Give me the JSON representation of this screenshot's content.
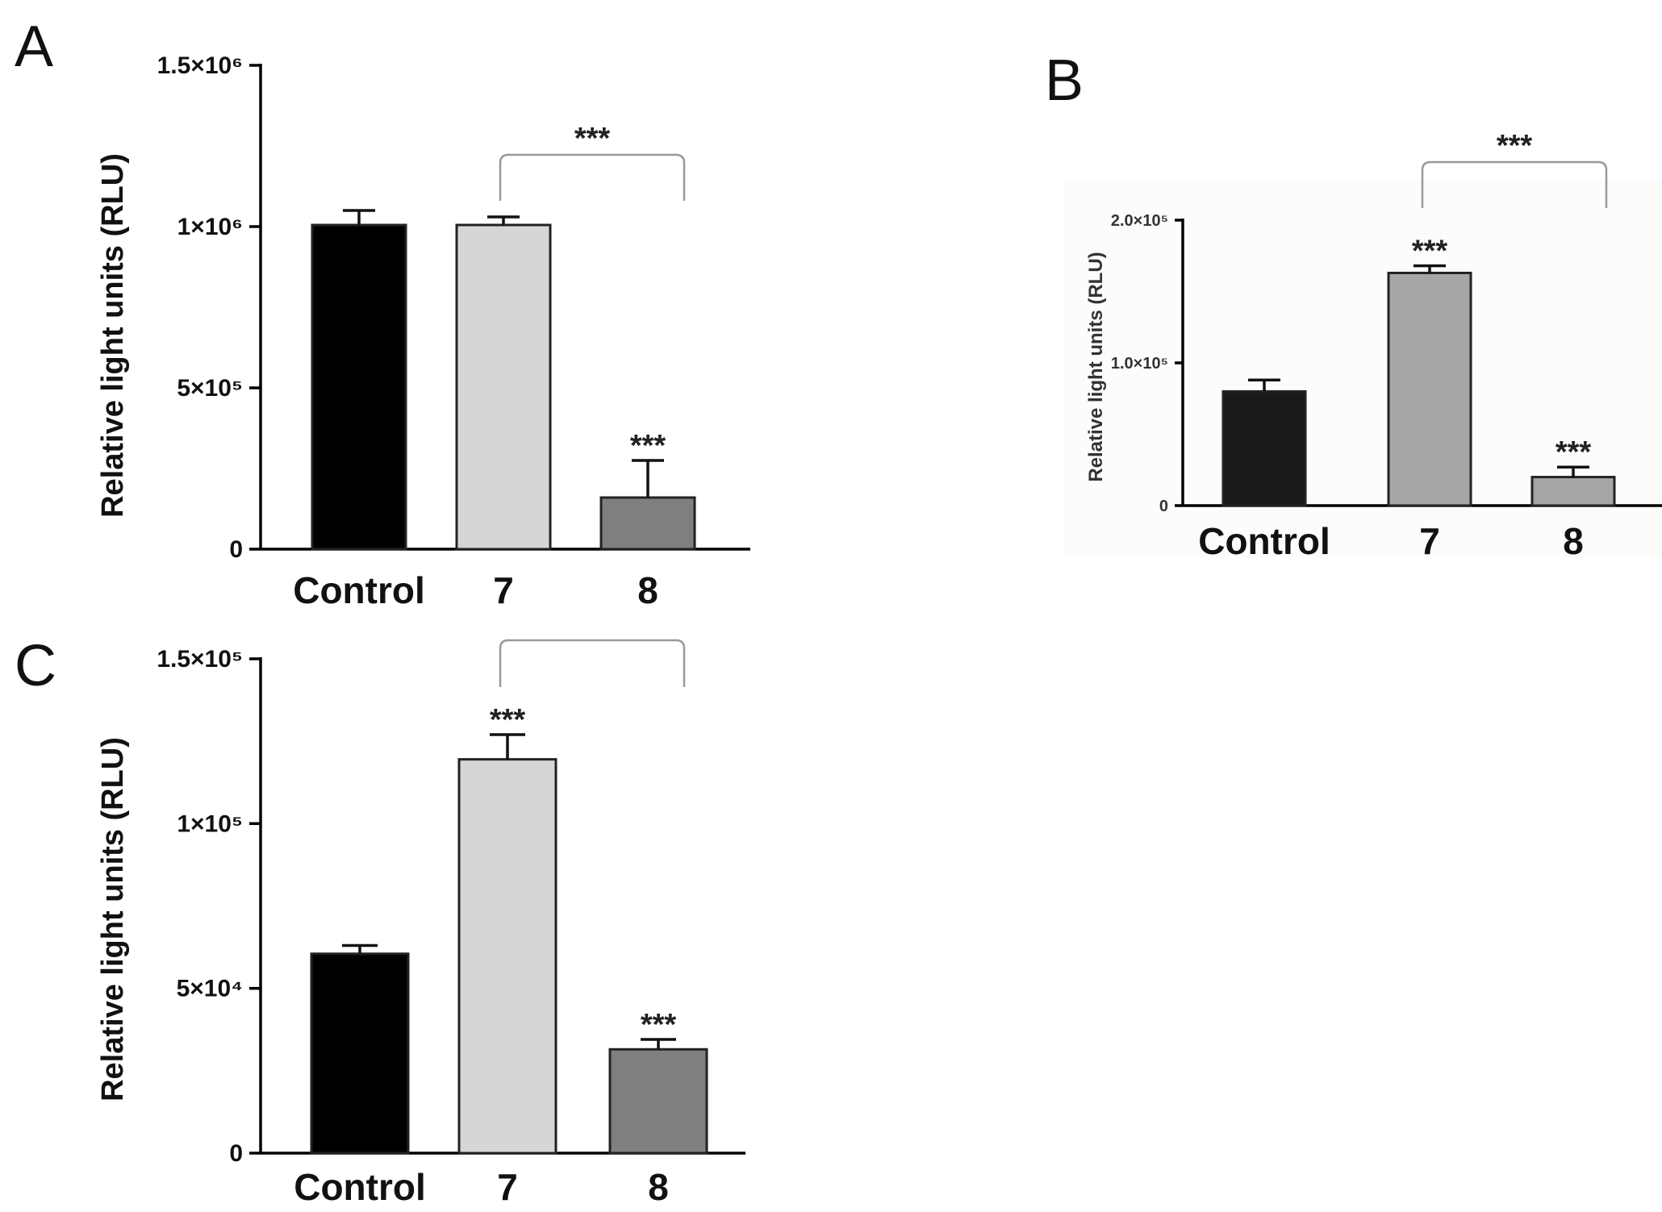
{
  "chart_data": [
    {
      "panel": "A",
      "type": "bar",
      "categories": [
        "Control",
        "7",
        "8"
      ],
      "values": [
        1005000,
        1005000,
        160000
      ],
      "errors": [
        45000,
        25000,
        115000
      ],
      "colors": [
        "#000000",
        "#d6d6d6",
        "#7f7f7f"
      ],
      "ylabel": "Relative light units (RLU)",
      "ylim": [
        0,
        1500000
      ],
      "yticks": [
        {
          "value": 0,
          "label": "0"
        },
        {
          "value": 500000,
          "label": "5×10⁵"
        },
        {
          "value": 1000000,
          "label": "1×10⁶"
        },
        {
          "value": 1500000,
          "label": "1.5×10⁶"
        }
      ],
      "bar_annotations": [
        "",
        "",
        "***"
      ],
      "bracket": {
        "from": 1,
        "to": 2,
        "label": "***"
      }
    },
    {
      "panel": "B",
      "type": "bar",
      "categories": [
        "Control",
        "7",
        "8"
      ],
      "values": [
        80000,
        163000,
        20000
      ],
      "errors": [
        8000,
        5000,
        7000
      ],
      "colors": [
        "#1a1a1a",
        "#a6a6a6",
        "#a6a6a6"
      ],
      "ylabel": "Relative light units (RLU)",
      "ylim": [
        0,
        200000
      ],
      "yticks": [
        {
          "value": 0,
          "label": "0"
        },
        {
          "value": 100000,
          "label": "1.0×10⁵"
        },
        {
          "value": 200000,
          "label": "2.0×10⁵"
        }
      ],
      "bar_annotations": [
        "",
        "***",
        "***"
      ],
      "bracket": {
        "from": 1,
        "to": 2,
        "label": "***"
      }
    },
    {
      "panel": "C",
      "type": "bar",
      "categories": [
        "Control",
        "7",
        "8"
      ],
      "values": [
        60500,
        119500,
        31500
      ],
      "errors": [
        2500,
        7500,
        3000
      ],
      "colors": [
        "#000000",
        "#d6d6d6",
        "#7f7f7f"
      ],
      "ylabel": "Relative light units (RLU)",
      "ylim": [
        0,
        150000
      ],
      "yticks": [
        {
          "value": 0,
          "label": "0"
        },
        {
          "value": 50000,
          "label": "5×10⁴"
        },
        {
          "value": 100000,
          "label": "1×10⁵"
        },
        {
          "value": 150000,
          "label": "1.5×10⁵"
        }
      ],
      "bar_annotations": [
        "",
        "***",
        "***"
      ],
      "bracket": {
        "from": 1,
        "to": 2,
        "label": ""
      }
    }
  ]
}
